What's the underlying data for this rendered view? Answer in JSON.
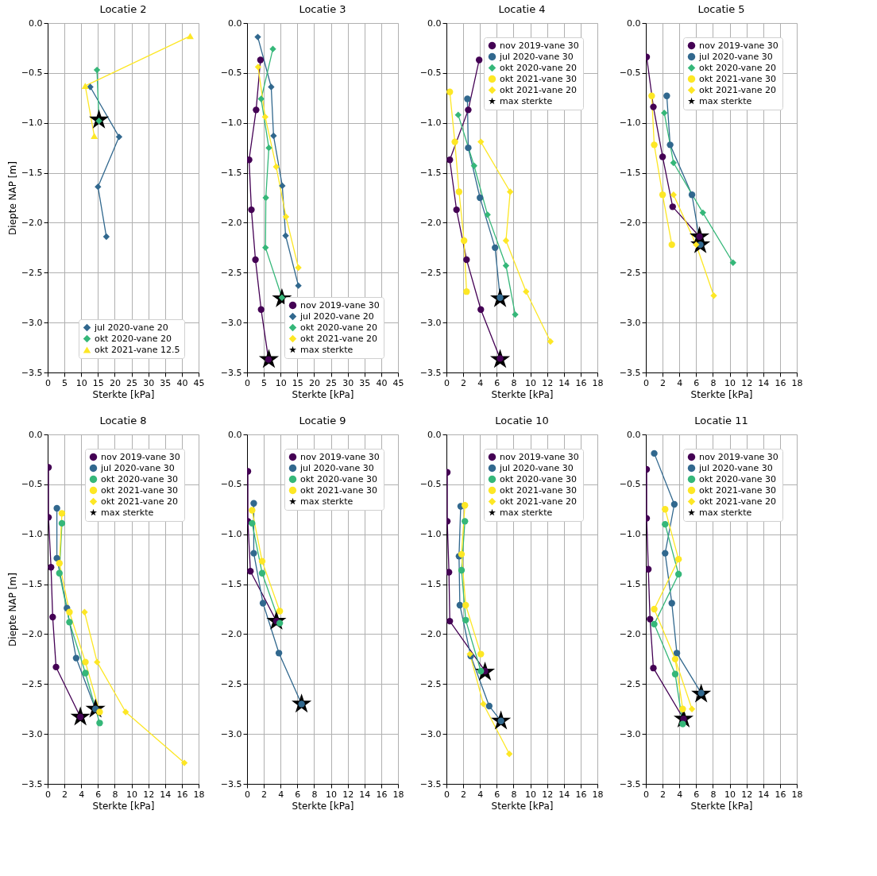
{
  "chart_data": [
    {
      "type": "line",
      "title": "Locatie 2",
      "xlabel": "Sterkte [kPa]",
      "ylabel": "Diepte NAP [m]",
      "xlim": [
        0,
        45
      ],
      "xticks": [
        0,
        5,
        10,
        15,
        20,
        25,
        30,
        35,
        40,
        45
      ],
      "ylim": [
        -3.5,
        0
      ],
      "yticks": [
        {
          "value": -3.5,
          "label": "−3.5"
        },
        {
          "value": -3.0,
          "label": "−3.0"
        },
        {
          "value": -2.5,
          "label": "−2.5"
        },
        {
          "value": -2.0,
          "label": "−2.0"
        },
        {
          "value": -1.5,
          "label": "−1.5"
        },
        {
          "value": -1.0,
          "label": "−1.0"
        },
        {
          "value": -0.5,
          "label": "−0.5"
        },
        {
          "value": 0,
          "label": "0.0"
        }
      ],
      "grid": true,
      "legend": "bottom right",
      "series": [
        {
          "name": "jul 2020-vane 20",
          "color": "#31688e",
          "marker": "diamond",
          "x": [
            12.7,
            21.3,
            15.0,
            17.5
          ],
          "values": [
            -0.64,
            -1.14,
            -1.64,
            -2.14
          ]
        },
        {
          "name": "okt 2020-vane 20",
          "color": "#35b779",
          "marker": "diamond",
          "x": [
            14.7,
            15.3
          ],
          "values": [
            -0.47,
            -0.98
          ]
        },
        {
          "name": "okt 2021-vane 12.5",
          "color": "#fde725",
          "marker": "triangle",
          "x": [
            42.5,
            11.2,
            13.9
          ],
          "values": [
            -0.13,
            -0.63,
            -1.13
          ]
        },
        {
          "type": "scatter",
          "color": "#000000",
          "marker": "star",
          "x": [
            15.3
          ],
          "values": [
            -0.97
          ]
        }
      ]
    },
    {
      "type": "line",
      "title": "Locatie 3",
      "xlabel": "Sterkte [kPa]",
      "xlim": [
        0,
        45
      ],
      "xticks": [
        0,
        5,
        10,
        15,
        20,
        25,
        30,
        35,
        40,
        45
      ],
      "ylim": [
        -3.5,
        0
      ],
      "yticks": [
        {
          "value": -3.5,
          "label": "−3.5"
        },
        {
          "value": -3.0,
          "label": "−3.0"
        },
        {
          "value": -2.5,
          "label": "−2.5"
        },
        {
          "value": -2.0,
          "label": "−2.0"
        },
        {
          "value": -1.5,
          "label": "−1.5"
        },
        {
          "value": -1.0,
          "label": "−1.0"
        },
        {
          "value": -0.5,
          "label": "−0.5"
        },
        {
          "value": 0,
          "label": "0.0"
        }
      ],
      "grid": true,
      "legend": "bottom right",
      "series": [
        {
          "name": "nov 2019-vane 30",
          "color": "#440154",
          "marker": "circle",
          "x": [
            4.0,
            2.7,
            0.6,
            1.3,
            2.5,
            4.2,
            6.4
          ],
          "values": [
            -0.37,
            -0.87,
            -1.37,
            -1.87,
            -2.37,
            -2.87,
            -3.37
          ]
        },
        {
          "name": "jul 2020-vane 20",
          "color": "#31688e",
          "marker": "diamond",
          "x": [
            3.2,
            7.2,
            7.9,
            10.5,
            11.5,
            15.3
          ],
          "values": [
            -0.14,
            -0.64,
            -1.13,
            -1.63,
            -2.13,
            -2.63
          ]
        },
        {
          "name": "okt 2020-vane 20",
          "color": "#35b779",
          "marker": "diamond",
          "x": [
            7.7,
            4.2,
            6.5,
            5.6,
            5.5,
            10.4
          ],
          "values": [
            -0.26,
            -0.76,
            -1.25,
            -1.75,
            -2.25,
            -2.75
          ]
        },
        {
          "name": "okt 2021-vane 20",
          "color": "#fde725",
          "marker": "diamond",
          "x": [
            3.3,
            5.4,
            8.7,
            11.6,
            15.3
          ],
          "values": [
            -0.44,
            -0.94,
            -1.44,
            -1.94,
            -2.45
          ]
        },
        {
          "type": "scatter",
          "name": "max sterkte",
          "color": "#000000",
          "marker": "star",
          "x": [
            10.4,
            6.5
          ],
          "values": [
            -2.76,
            -3.37
          ]
        }
      ]
    },
    {
      "type": "line",
      "title": "Locatie 4",
      "xlabel": "Sterkte [kPa]",
      "xlim": [
        0,
        18
      ],
      "xticks": [
        0,
        2,
        4,
        6,
        8,
        10,
        12,
        14,
        16,
        18
      ],
      "ylim": [
        -3.5,
        0
      ],
      "yticks": [
        {
          "value": -3.5,
          "label": "−3.5"
        },
        {
          "value": -3.0,
          "label": "−3.0"
        },
        {
          "value": -2.5,
          "label": "−2.5"
        },
        {
          "value": -2.0,
          "label": "−2.0"
        },
        {
          "value": -1.5,
          "label": "−1.5"
        },
        {
          "value": -1.0,
          "label": "−1.0"
        },
        {
          "value": -0.5,
          "label": "−0.5"
        },
        {
          "value": 0,
          "label": "0.0"
        }
      ],
      "grid": true,
      "legend": "top right",
      "series": [
        {
          "name": "nov 2019-vane 30",
          "color": "#440154",
          "marker": "circle",
          "x": [
            3.9,
            2.6,
            0.4,
            1.2,
            2.4,
            4.1,
            6.4
          ],
          "values": [
            -0.37,
            -0.87,
            -1.37,
            -1.87,
            -2.37,
            -2.87,
            -3.36
          ]
        },
        {
          "name": "jul 2020-vane 30",
          "color": "#31688e",
          "marker": "circle",
          "x": [
            2.5,
            2.6,
            4.0,
            5.8,
            6.4
          ],
          "values": [
            -0.76,
            -1.25,
            -1.75,
            -2.25,
            -2.75
          ]
        },
        {
          "name": "okt 2020-vane 20",
          "color": "#35b779",
          "marker": "diamond",
          "x": [
            1.4,
            3.3,
            4.9,
            7.1,
            8.2
          ],
          "values": [
            -0.92,
            -1.43,
            -1.92,
            -2.43,
            -2.92
          ]
        },
        {
          "name": "okt 2021-vane 30",
          "color": "#fde725",
          "marker": "circle",
          "x": [
            0.4,
            1.0,
            1.5,
            2.1,
            2.4
          ],
          "values": [
            -0.69,
            -1.19,
            -1.69,
            -2.18,
            -2.69
          ]
        },
        {
          "name": "okt 2021-vane 20",
          "color": "#fde725",
          "marker": "diamond",
          "x": [
            4.1,
            7.6,
            7.1,
            9.5,
            12.4
          ],
          "values": [
            -1.19,
            -1.69,
            -2.18,
            -2.69,
            -3.19
          ]
        },
        {
          "type": "scatter",
          "name": "max sterkte",
          "color": "#000000",
          "marker": "star",
          "x": [
            6.4,
            6.4
          ],
          "values": [
            -2.76,
            -3.37
          ]
        }
      ]
    },
    {
      "type": "line",
      "title": "Locatie 5",
      "xlabel": "Sterkte [kPa]",
      "xlim": [
        0,
        18
      ],
      "xticks": [
        0,
        2,
        4,
        6,
        8,
        10,
        12,
        14,
        16,
        18
      ],
      "ylim": [
        -3.5,
        0
      ],
      "yticks": [
        {
          "value": -3.5,
          "label": "−3.5"
        },
        {
          "value": -3.0,
          "label": "−3.0"
        },
        {
          "value": -2.5,
          "label": "−2.5"
        },
        {
          "value": -2.0,
          "label": "−2.0"
        },
        {
          "value": -1.5,
          "label": "−1.5"
        },
        {
          "value": -1.0,
          "label": "−1.0"
        },
        {
          "value": -0.5,
          "label": "−0.5"
        },
        {
          "value": 0,
          "label": "0.0"
        }
      ],
      "grid": true,
      "legend": "top right",
      "series": [
        {
          "name": "nov 2019-vane 30",
          "color": "#440154",
          "marker": "circle",
          "x": [
            0.1,
            0.9,
            2.0,
            3.2,
            6.4
          ],
          "values": [
            -0.34,
            -0.84,
            -1.34,
            -1.84,
            -2.14
          ]
        },
        {
          "name": "jul 2020-vane 30",
          "color": "#31688e",
          "marker": "circle",
          "x": [
            2.5,
            2.9,
            5.5,
            6.5
          ],
          "values": [
            -0.73,
            -1.22,
            -1.72,
            -2.22
          ]
        },
        {
          "name": "okt 2020-vane 20",
          "color": "#35b779",
          "marker": "diamond",
          "x": [
            2.2,
            3.3,
            6.8,
            10.4
          ],
          "values": [
            -0.9,
            -1.4,
            -1.9,
            -2.4
          ]
        },
        {
          "name": "okt 2021-vane 30",
          "color": "#fde725",
          "marker": "circle",
          "x": [
            0.7,
            1.0,
            2.0,
            3.1
          ],
          "values": [
            -0.73,
            -1.22,
            -1.72,
            -2.22
          ]
        },
        {
          "name": "okt 2021-vane 20",
          "color": "#fde725",
          "marker": "diamond",
          "x": [
            3.3,
            6.0,
            8.1
          ],
          "values": [
            -1.72,
            -2.22,
            -2.73
          ]
        },
        {
          "type": "scatter",
          "name": "max sterkte",
          "color": "#000000",
          "marker": "star",
          "x": [
            6.4,
            6.5
          ],
          "values": [
            -2.14,
            -2.22
          ]
        }
      ]
    },
    {
      "type": "line",
      "title": "Locatie 8",
      "xlabel": "Sterkte [kPa]",
      "ylabel": "Diepte NAP [m]",
      "xlim": [
        0,
        18
      ],
      "xticks": [
        0,
        2,
        4,
        6,
        8,
        10,
        12,
        14,
        16,
        18
      ],
      "ylim": [
        -3.5,
        0
      ],
      "yticks": [
        {
          "value": -3.5,
          "label": "−3.5"
        },
        {
          "value": -3.0,
          "label": "−3.0"
        },
        {
          "value": -2.5,
          "label": "−2.5"
        },
        {
          "value": -2.0,
          "label": "−2.0"
        },
        {
          "value": -1.5,
          "label": "−1.5"
        },
        {
          "value": -1.0,
          "label": "−1.0"
        },
        {
          "value": -0.5,
          "label": "−0.5"
        },
        {
          "value": 0,
          "label": "0.0"
        }
      ],
      "grid": true,
      "legend": "top right",
      "series": [
        {
          "name": "nov 2019-vane 30",
          "color": "#440154",
          "marker": "circle",
          "x": [
            0.1,
            0.1,
            0.4,
            0.6,
            1.0,
            3.9
          ],
          "values": [
            -0.33,
            -0.83,
            -1.33,
            -1.83,
            -2.33,
            -2.83
          ]
        },
        {
          "name": "jul 2020-vane 30",
          "color": "#31688e",
          "marker": "circle",
          "x": [
            1.1,
            1.1,
            2.3,
            3.4,
            5.7
          ],
          "values": [
            -0.74,
            -1.24,
            -1.74,
            -2.24,
            -2.75
          ]
        },
        {
          "name": "okt 2020-vane 30",
          "color": "#35b779",
          "marker": "circle",
          "x": [
            1.7,
            1.4,
            2.6,
            4.5,
            6.2
          ],
          "values": [
            -0.89,
            -1.39,
            -1.88,
            -2.39,
            -2.89
          ]
        },
        {
          "name": "okt 2021-vane 30",
          "color": "#fde725",
          "marker": "circle",
          "x": [
            1.7,
            1.4,
            2.6,
            4.5,
            6.2
          ],
          "values": [
            -0.79,
            -1.29,
            -1.78,
            -2.28,
            -2.78
          ]
        },
        {
          "name": "okt 2021-vane 20",
          "color": "#fde725",
          "marker": "diamond",
          "x": [
            4.4,
            5.9,
            9.3,
            16.3
          ],
          "values": [
            -1.78,
            -2.28,
            -2.78,
            -3.29
          ]
        },
        {
          "type": "scatter",
          "name": "max sterkte",
          "color": "#000000",
          "marker": "star",
          "x": [
            3.9,
            5.7
          ],
          "values": [
            -2.83,
            -2.75
          ]
        }
      ]
    },
    {
      "type": "line",
      "title": "Locatie 9",
      "xlabel": "Sterkte [kPa]",
      "xlim": [
        0,
        18
      ],
      "xticks": [
        0,
        2,
        4,
        6,
        8,
        10,
        12,
        14,
        16,
        18
      ],
      "ylim": [
        -3.5,
        0
      ],
      "yticks": [
        {
          "value": -3.5,
          "label": "−3.5"
        },
        {
          "value": -3.0,
          "label": "−3.0"
        },
        {
          "value": -2.5,
          "label": "−2.5"
        },
        {
          "value": -2.0,
          "label": "−2.0"
        },
        {
          "value": -1.5,
          "label": "−1.5"
        },
        {
          "value": -1.0,
          "label": "−1.0"
        },
        {
          "value": -0.5,
          "label": "−0.5"
        },
        {
          "value": 0,
          "label": "0.0"
        }
      ],
      "grid": true,
      "legend": "top right",
      "series": [
        {
          "name": "nov 2019-vane 30",
          "color": "#440154",
          "marker": "circle",
          "x": [
            0.1,
            0.1,
            0.4,
            3.5
          ],
          "values": [
            -0.37,
            -0.87,
            -1.37,
            -1.87
          ]
        },
        {
          "name": "jul 2020-vane 30",
          "color": "#31688e",
          "marker": "circle",
          "x": [
            0.8,
            0.8,
            1.9,
            3.8,
            6.5
          ],
          "values": [
            -0.69,
            -1.19,
            -1.69,
            -2.19,
            -2.7
          ]
        },
        {
          "name": "okt 2020-vane 30",
          "color": "#35b779",
          "marker": "circle",
          "x": [
            0.6,
            1.8,
            3.9
          ],
          "values": [
            -0.89,
            -1.39,
            -1.89
          ]
        },
        {
          "name": "okt 2021-vane 30",
          "color": "#fde725",
          "marker": "circle",
          "x": [
            0.6,
            1.8,
            3.9
          ],
          "values": [
            -0.76,
            -1.27,
            -1.77
          ]
        },
        {
          "type": "scatter",
          "name": "max sterkte",
          "color": "#000000",
          "marker": "star",
          "x": [
            3.5,
            6.5
          ],
          "values": [
            -1.87,
            -2.7
          ]
        }
      ]
    },
    {
      "type": "line",
      "title": "Locatie 10",
      "xlabel": "Sterkte [kPa]",
      "xlim": [
        0,
        18
      ],
      "xticks": [
        0,
        2,
        4,
        6,
        8,
        10,
        12,
        14,
        16,
        18
      ],
      "ylim": [
        -3.5,
        0
      ],
      "yticks": [
        {
          "value": -3.5,
          "label": "−3.5"
        },
        {
          "value": -3.0,
          "label": "−3.0"
        },
        {
          "value": -2.5,
          "label": "−2.5"
        },
        {
          "value": -2.0,
          "label": "−2.0"
        },
        {
          "value": -1.5,
          "label": "−1.5"
        },
        {
          "value": -1.0,
          "label": "−1.0"
        },
        {
          "value": -0.5,
          "label": "−0.5"
        },
        {
          "value": 0,
          "label": "0.0"
        }
      ],
      "grid": true,
      "legend": "top right",
      "series": [
        {
          "name": "nov 2019-vane 30",
          "color": "#440154",
          "marker": "circle",
          "x": [
            0.1,
            0.1,
            0.3,
            0.4,
            4.6
          ],
          "values": [
            -0.38,
            -0.87,
            -1.38,
            -1.87,
            -2.37
          ]
        },
        {
          "name": "jul 2020-vane 30",
          "color": "#31688e",
          "marker": "circle",
          "x": [
            1.7,
            1.5,
            1.6,
            2.9,
            5.1,
            6.5
          ],
          "values": [
            -0.72,
            -1.22,
            -1.71,
            -2.22,
            -2.72,
            -2.87
          ]
        },
        {
          "name": "okt 2020-vane 30",
          "color": "#35b779",
          "marker": "circle",
          "x": [
            2.2,
            1.8,
            2.3,
            4.1
          ],
          "values": [
            -0.87,
            -1.36,
            -1.86,
            -2.37
          ]
        },
        {
          "name": "okt 2021-vane 30",
          "color": "#fde725",
          "marker": "circle",
          "x": [
            2.2,
            1.8,
            2.3,
            4.1
          ],
          "values": [
            -0.71,
            -1.2,
            -1.71,
            -2.2
          ]
        },
        {
          "name": "okt 2021-vane 20",
          "color": "#fde725",
          "marker": "diamond",
          "x": [
            2.8,
            4.4,
            7.5
          ],
          "values": [
            -2.2,
            -2.7,
            -3.2
          ]
        },
        {
          "type": "scatter",
          "name": "max sterkte",
          "color": "#000000",
          "marker": "star",
          "x": [
            4.6,
            6.5
          ],
          "values": [
            -2.38,
            -2.87
          ]
        }
      ]
    },
    {
      "type": "line",
      "title": "Locatie 11",
      "xlabel": "Sterkte [kPa]",
      "xlim": [
        0,
        18
      ],
      "xticks": [
        0,
        2,
        4,
        6,
        8,
        10,
        12,
        14,
        16,
        18
      ],
      "ylim": [
        -3.5,
        0
      ],
      "yticks": [
        {
          "value": -3.5,
          "label": "−3.5"
        },
        {
          "value": -3.0,
          "label": "−3.0"
        },
        {
          "value": -2.5,
          "label": "−2.5"
        },
        {
          "value": -2.0,
          "label": "−2.0"
        },
        {
          "value": -1.5,
          "label": "−1.5"
        },
        {
          "value": -1.0,
          "label": "−1.0"
        },
        {
          "value": -0.5,
          "label": "−0.5"
        },
        {
          "value": 0,
          "label": "0.0"
        }
      ],
      "grid": true,
      "legend": "top right",
      "series": [
        {
          "name": "nov 2019-vane 30",
          "color": "#440154",
          "marker": "circle",
          "x": [
            0.1,
            0.1,
            0.3,
            0.5,
            0.9,
            4.5
          ],
          "values": [
            -0.35,
            -0.84,
            -1.35,
            -1.85,
            -2.34,
            -2.85
          ]
        },
        {
          "name": "jul 2020-vane 30",
          "color": "#31688e",
          "marker": "circle",
          "x": [
            1.0,
            3.4,
            2.3,
            3.1,
            3.7,
            6.6
          ],
          "values": [
            -0.19,
            -0.7,
            -1.19,
            -1.69,
            -2.19,
            -2.59
          ]
        },
        {
          "name": "okt 2020-vane 30",
          "color": "#35b779",
          "marker": "circle",
          "x": [
            2.3,
            3.9,
            1.0,
            3.5,
            4.4
          ],
          "values": [
            -0.9,
            -1.4,
            -1.9,
            -2.4,
            -2.9
          ]
        },
        {
          "name": "okt 2021-vane 30",
          "color": "#fde725",
          "marker": "circle",
          "x": [
            2.3,
            3.9,
            1.0,
            3.5,
            4.4
          ],
          "values": [
            -0.75,
            -1.25,
            -1.75,
            -2.25,
            -2.75
          ]
        },
        {
          "name": "okt 2021-vane 20",
          "color": "#fde725",
          "marker": "diamond",
          "x": [
            3.5,
            5.5
          ],
          "values": [
            -2.25,
            -2.75
          ]
        },
        {
          "type": "scatter",
          "name": "max sterkte",
          "color": "#000000",
          "marker": "star",
          "x": [
            4.5,
            6.6
          ],
          "values": [
            -2.85,
            -2.6
          ]
        }
      ]
    }
  ]
}
